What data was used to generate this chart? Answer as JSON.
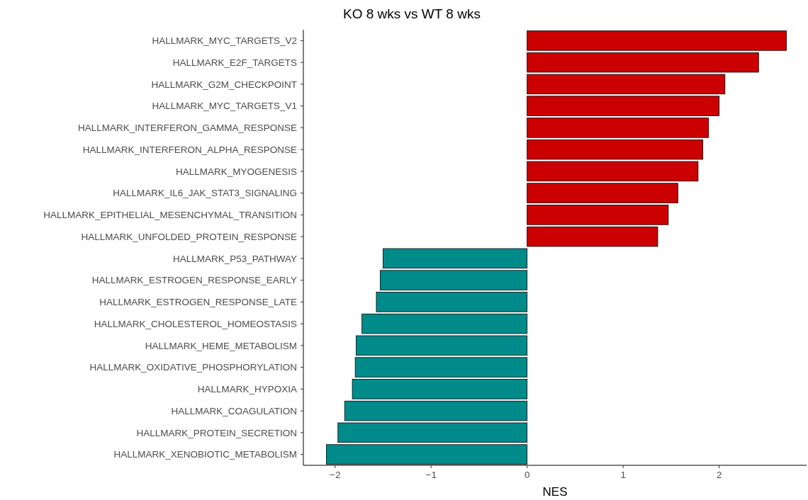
{
  "chart_data": {
    "type": "bar",
    "orientation": "horizontal",
    "title": "KO 8 wks vs WT 8 wks",
    "xlabel": "NES",
    "categories": [
      "HALLMARK_MYC_TARGETS_V2",
      "HALLMARK_E2F_TARGETS",
      "HALLMARK_G2M_CHECKPOINT",
      "HALLMARK_MYC_TARGETS_V1",
      "HALLMARK_INTERFERON_GAMMA_RESPONSE",
      "HALLMARK_INTERFERON_ALPHA_RESPONSE",
      "HALLMARK_MYOGENESIS",
      "HALLMARK_IL6_JAK_STAT3_SIGNALING",
      "HALLMARK_EPITHELIAL_MESENCHYMAL_TRANSITION",
      "HALLMARK_UNFOLDED_PROTEIN_RESPONSE",
      "HALLMARK_P53_PATHWAY",
      "HALLMARK_ESTROGEN_RESPONSE_EARLY",
      "HALLMARK_ESTROGEN_RESPONSE_LATE",
      "HALLMARK_CHOLESTEROL_HOMEOSTASIS",
      "HALLMARK_HEME_METABOLISM",
      "HALLMARK_OXIDATIVE_PHOSPHORYLATION",
      "HALLMARK_HYPOXIA",
      "HALLMARK_COAGULATION",
      "HALLMARK_PROTEIN_SECRETION",
      "HALLMARK_XENOBIOTIC_METABOLISM"
    ],
    "values": [
      2.7,
      2.41,
      2.06,
      2.0,
      1.89,
      1.83,
      1.78,
      1.57,
      1.47,
      1.36,
      -1.5,
      -1.53,
      -1.57,
      -1.72,
      -1.78,
      -1.79,
      -1.82,
      -1.9,
      -1.97,
      -2.09
    ],
    "colors": [
      "#cc0000",
      "#cc0000",
      "#cc0000",
      "#cc0000",
      "#cc0000",
      "#cc0000",
      "#cc0000",
      "#cc0000",
      "#cc0000",
      "#cc0000",
      "#008b8b",
      "#008b8b",
      "#008b8b",
      "#008b8b",
      "#008b8b",
      "#008b8b",
      "#008b8b",
      "#008b8b",
      "#008b8b",
      "#008b8b"
    ],
    "xlim": [
      -2.33,
      2.91
    ],
    "xticks": [
      -2,
      -1,
      0,
      1,
      2
    ],
    "grid": false
  }
}
